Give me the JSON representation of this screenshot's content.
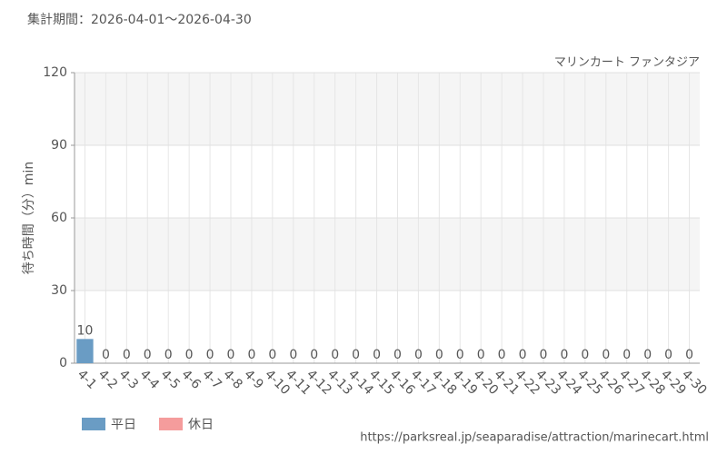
{
  "chart_data": {
    "type": "bar",
    "title": "集計期間：2026-04-01～2026-04-30",
    "subtitle": "マリンカート ファンタジア",
    "y_label": "待ち時間（分）min",
    "source": "https://parksreal.jp/seaparadise/attraction/marinecart.html",
    "categories": [
      "4-1",
      "4-2",
      "4-3",
      "4-4",
      "4-5",
      "4-6",
      "4-7",
      "4-8",
      "4-9",
      "4-10",
      "4-11",
      "4-12",
      "4-13",
      "4-14",
      "4-15",
      "4-16",
      "4-17",
      "4-18",
      "4-19",
      "4-20",
      "4-21",
      "4-22",
      "4-23",
      "4-24",
      "4-25",
      "4-26",
      "4-27",
      "4-28",
      "4-29",
      "4-30"
    ],
    "series": [
      {
        "name": "平日",
        "color": "#6a9cc4",
        "values": [
          10,
          0,
          0,
          null,
          null,
          0,
          0,
          0,
          0,
          0,
          null,
          null,
          0,
          0,
          0,
          0,
          0,
          null,
          null,
          0,
          0,
          0,
          0,
          0,
          null,
          null,
          0,
          0,
          null,
          0
        ]
      },
      {
        "name": "休日",
        "color": "#f59c9c",
        "values": [
          null,
          null,
          null,
          0,
          0,
          null,
          null,
          null,
          null,
          null,
          0,
          0,
          null,
          null,
          null,
          null,
          null,
          0,
          0,
          null,
          null,
          null,
          null,
          null,
          0,
          0,
          null,
          null,
          0,
          null
        ]
      }
    ],
    "ylim": [
      0,
      120
    ],
    "yticks": [
      0,
      30,
      60,
      90,
      120
    ],
    "grid": true
  }
}
